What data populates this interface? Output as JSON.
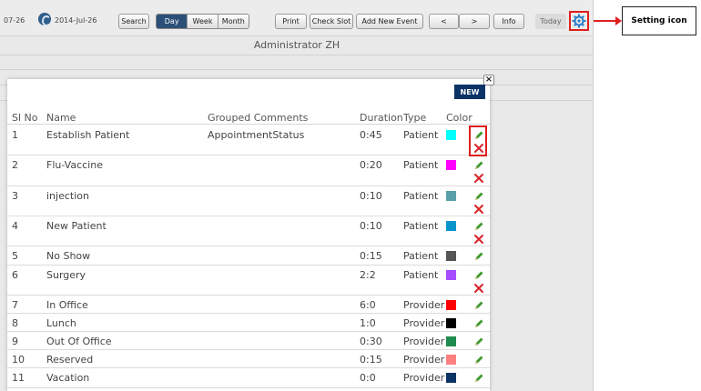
{
  "toolbar": {
    "date_partial": "07-26",
    "date": "2014-Jul-26",
    "search_label": "Search",
    "view_tabs": [
      {
        "label": "Day",
        "active": true
      },
      {
        "label": "Week",
        "active": false
      },
      {
        "label": "Month",
        "active": false
      }
    ],
    "print_label": "Print",
    "check_slot_label": "Check Slot",
    "add_event_label": "Add New Event",
    "prev_label": "<",
    "next_label": ">",
    "info_label": "Info",
    "today_label": "Today"
  },
  "header": {
    "title": "Administrator ZH"
  },
  "modal": {
    "close_label": "×",
    "new_label": "NEW",
    "columns": [
      "Sl No",
      "Name",
      "Grouped Comments",
      "Duration",
      "Type",
      "Color"
    ],
    "rows": [
      {
        "no": "1",
        "name": "Establish Patient",
        "group": "AppointmentStatus",
        "duration": "0:45",
        "type": "Patient",
        "color": "#00ffff",
        "deletable": true
      },
      {
        "no": "2",
        "name": "Flu-Vaccine",
        "group": "",
        "duration": "0:20",
        "type": "Patient",
        "color": "#ff00ff",
        "deletable": true
      },
      {
        "no": "3",
        "name": "injection",
        "group": "",
        "duration": "0:10",
        "type": "Patient",
        "color": "#5aa0a8",
        "deletable": true
      },
      {
        "no": "4",
        "name": "New Patient",
        "group": "",
        "duration": "0:10",
        "type": "Patient",
        "color": "#0a94cc",
        "deletable": true
      },
      {
        "no": "5",
        "name": "No Show",
        "group": "",
        "duration": "0:15",
        "type": "Patient",
        "color": "#555555",
        "deletable": false
      },
      {
        "no": "6",
        "name": "Surgery",
        "group": "",
        "duration": "2:2",
        "type": "Patient",
        "color": "#a64dff",
        "deletable": true
      },
      {
        "no": "7",
        "name": "In Office",
        "group": "",
        "duration": "6:0",
        "type": "Provider",
        "color": "#ff0000",
        "deletable": false
      },
      {
        "no": "8",
        "name": "Lunch",
        "group": "",
        "duration": "1:0",
        "type": "Provider",
        "color": "#000000",
        "deletable": false
      },
      {
        "no": "9",
        "name": "Out Of Office",
        "group": "",
        "duration": "0:30",
        "type": "Provider",
        "color": "#1e8c4e",
        "deletable": false
      },
      {
        "no": "10",
        "name": "Reserved",
        "group": "",
        "duration": "0:15",
        "type": "Provider",
        "color": "#ff8080",
        "deletable": false
      },
      {
        "no": "11",
        "name": "Vacation",
        "group": "",
        "duration": "0:0",
        "type": "Provider",
        "color": "#0c3366",
        "deletable": false
      }
    ]
  },
  "annotation": {
    "label": "Setting icon"
  },
  "colors": {
    "highlight": "#e01e1e",
    "accent": "#2c4f78",
    "new_button": "#0c3366"
  }
}
